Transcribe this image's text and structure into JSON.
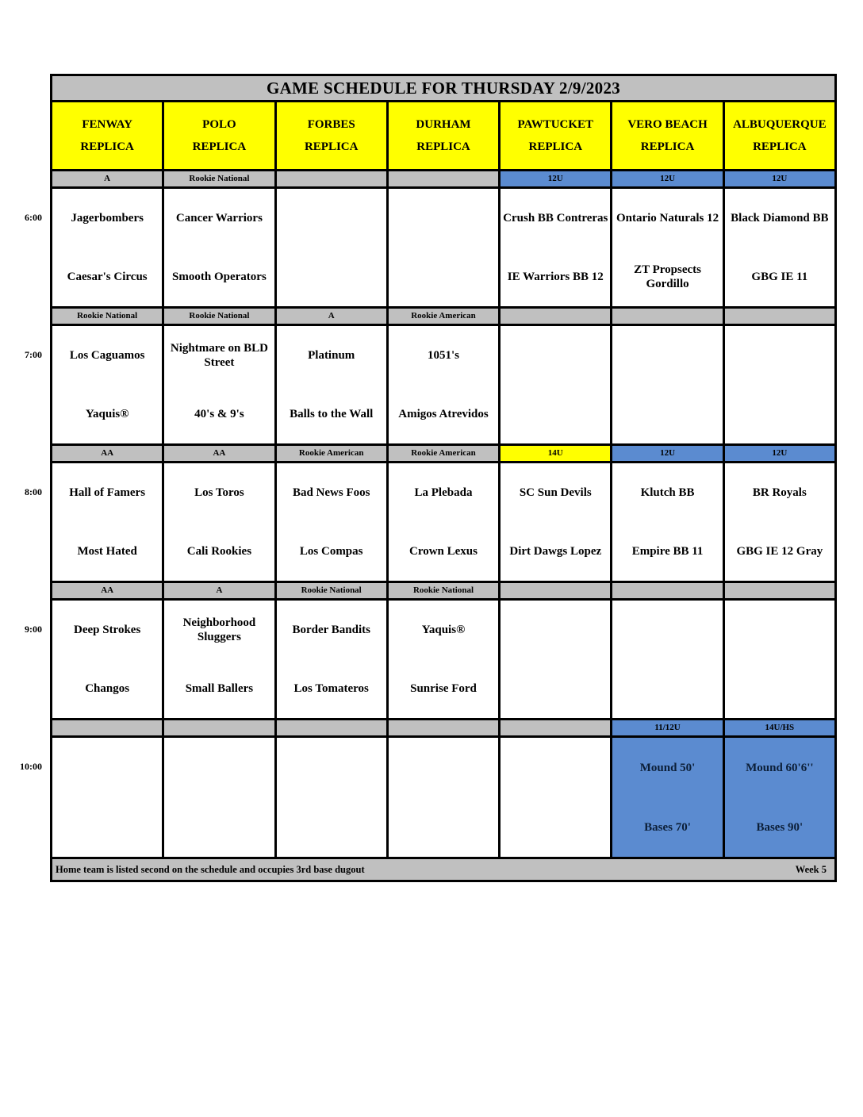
{
  "title": "GAME SCHEDULE FOR THURSDAY 2/9/2023",
  "venue_suffix": "REPLICA",
  "venues": [
    "FENWAY",
    "POLO",
    "FORBES",
    "DURHAM",
    "PAWTUCKET",
    "VERO BEACH",
    "ALBUQUERQUE"
  ],
  "schedule": [
    {
      "time": "6:00",
      "games": [
        {
          "division": "A",
          "division_style": "gray",
          "away": "Jagerbombers",
          "home": "Caesar's Circus",
          "cell_style": "white"
        },
        {
          "division": "Rookie National",
          "division_style": "gray",
          "away": "Cancer Warriors",
          "home": "Smooth Operators",
          "cell_style": "white"
        },
        {
          "division": "",
          "division_style": "gray",
          "away": "",
          "home": "",
          "cell_style": "white"
        },
        {
          "division": "",
          "division_style": "gray",
          "away": "",
          "home": "",
          "cell_style": "white"
        },
        {
          "division": "12U",
          "division_style": "blue",
          "away": "Crush BB Contreras",
          "home": "IE Warriors BB 12",
          "cell_style": "white"
        },
        {
          "division": "12U",
          "division_style": "blue",
          "away": "Ontario Naturals 12",
          "home": "ZT Propsects Gordillo",
          "cell_style": "white"
        },
        {
          "division": "12U",
          "division_style": "blue",
          "away": "Black Diamond BB",
          "home": "GBG IE 11",
          "cell_style": "white"
        }
      ]
    },
    {
      "time": "7:00",
      "games": [
        {
          "division": "Rookie National",
          "division_style": "gray",
          "away": "Los Caguamos",
          "home": "Yaquis®",
          "cell_style": "white"
        },
        {
          "division": "Rookie National",
          "division_style": "gray",
          "away": "Nightmare on BLD Street",
          "home": "40's & 9's",
          "cell_style": "white"
        },
        {
          "division": "A",
          "division_style": "gray",
          "away": "Platinum",
          "home": "Balls to the Wall",
          "cell_style": "white"
        },
        {
          "division": "Rookie American",
          "division_style": "gray",
          "away": "1051's",
          "home": "Amigos Atrevidos",
          "cell_style": "white"
        },
        {
          "division": "",
          "division_style": "gray",
          "away": "",
          "home": "",
          "cell_style": "white"
        },
        {
          "division": "",
          "division_style": "gray",
          "away": "",
          "home": "",
          "cell_style": "white"
        },
        {
          "division": "",
          "division_style": "gray",
          "away": "",
          "home": "",
          "cell_style": "white"
        }
      ]
    },
    {
      "time": "8:00",
      "games": [
        {
          "division": "AA",
          "division_style": "gray",
          "away": "Hall of Famers",
          "home": "Most Hated",
          "cell_style": "white"
        },
        {
          "division": "AA",
          "division_style": "gray",
          "away": "Los Toros",
          "home": "Cali Rookies",
          "cell_style": "white"
        },
        {
          "division": "Rookie American",
          "division_style": "gray",
          "away": "Bad News Foos",
          "home": "Los Compas",
          "cell_style": "white"
        },
        {
          "division": "Rookie American",
          "division_style": "gray",
          "away": "La Plebada",
          "home": "Crown Lexus",
          "cell_style": "white"
        },
        {
          "division": "14U",
          "division_style": "yellow",
          "away": "SC Sun Devils",
          "home": "Dirt Dawgs Lopez",
          "cell_style": "white"
        },
        {
          "division": "12U",
          "division_style": "blue",
          "away": "Klutch BB",
          "home": "Empire BB 11",
          "cell_style": "white"
        },
        {
          "division": "12U",
          "division_style": "blue",
          "away": "BR Royals",
          "home": "GBG IE 12 Gray",
          "cell_style": "white"
        }
      ]
    },
    {
      "time": "9:00",
      "games": [
        {
          "division": "AA",
          "division_style": "gray",
          "away": "Deep Strokes",
          "home": "Changos",
          "cell_style": "white"
        },
        {
          "division": "A",
          "division_style": "gray",
          "away": "Neighborhood Sluggers",
          "home": "Small Ballers",
          "cell_style": "white"
        },
        {
          "division": "Rookie National",
          "division_style": "gray",
          "away": "Border Bandits",
          "home": "Los Tomateros",
          "cell_style": "white"
        },
        {
          "division": "Rookie National",
          "division_style": "gray",
          "away": "Yaquis®",
          "home": "Sunrise Ford",
          "cell_style": "white"
        },
        {
          "division": "",
          "division_style": "gray",
          "away": "",
          "home": "",
          "cell_style": "white"
        },
        {
          "division": "",
          "division_style": "gray",
          "away": "",
          "home": "",
          "cell_style": "white"
        },
        {
          "division": "",
          "division_style": "gray",
          "away": "",
          "home": "",
          "cell_style": "white"
        }
      ]
    },
    {
      "time": "10:00",
      "games": [
        {
          "division": "",
          "division_style": "gray",
          "away": "",
          "home": "",
          "cell_style": "white"
        },
        {
          "division": "",
          "division_style": "gray",
          "away": "",
          "home": "",
          "cell_style": "white"
        },
        {
          "division": "",
          "division_style": "gray",
          "away": "",
          "home": "",
          "cell_style": "white"
        },
        {
          "division": "",
          "division_style": "gray",
          "away": "",
          "home": "",
          "cell_style": "white"
        },
        {
          "division": "",
          "division_style": "gray",
          "away": "",
          "home": "",
          "cell_style": "white"
        },
        {
          "division": "11/12U",
          "division_style": "blue",
          "away": "Mound 50'",
          "home": "Bases 70'",
          "cell_style": "blue"
        },
        {
          "division": "14U/HS",
          "division_style": "blue",
          "away": "Mound 60'6''",
          "home": "Bases 90'",
          "cell_style": "blue"
        }
      ]
    }
  ],
  "footer": {
    "note": "Home team is listed second on the schedule and occupies 3rd base dugout",
    "week": "Week 5"
  },
  "colors": {
    "band_gray": "#c0c0c0",
    "band_blue": "#5b8bd0",
    "band_yellow": "#ffff00",
    "header_yellow": "#ffff00",
    "title_gray": "#c0c0c0"
  }
}
